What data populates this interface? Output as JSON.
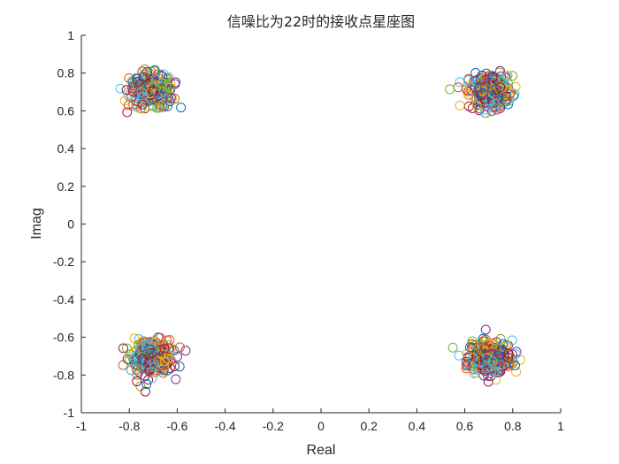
{
  "chart_data": {
    "type": "scatter",
    "title": "信噪比为22时的接收点星座图",
    "xlabel": "Real",
    "ylabel": "Imag",
    "xlim": [
      -1,
      1
    ],
    "ylim": [
      -1,
      1
    ],
    "xticks": [
      -1,
      -0.8,
      -0.6,
      -0.4,
      -0.2,
      0,
      0.2,
      0.4,
      0.6,
      0.8,
      1
    ],
    "xtick_labels": [
      "-1",
      "-0.8",
      "-0.6",
      "-0.4",
      "-0.2",
      "0",
      "0.2",
      "0.4",
      "0.6",
      "0.8",
      "1"
    ],
    "yticks": [
      -1,
      -0.8,
      -0.6,
      -0.4,
      -0.2,
      0,
      0.2,
      0.4,
      0.6,
      0.8,
      1
    ],
    "ytick_labels": [
      "-1",
      "-0.8",
      "-0.6",
      "-0.4",
      "-0.2",
      "0",
      "0.2",
      "0.4",
      "0.6",
      "0.8",
      "1"
    ],
    "grid": false,
    "marker": "open-circle",
    "colors": [
      "#0072BD",
      "#D95319",
      "#EDB120",
      "#7E2F8E",
      "#77AC30",
      "#4DBEEE",
      "#A2142F"
    ],
    "clusters": [
      {
        "center": [
          -0.707,
          0.707
        ],
        "spread": 0.045
      },
      {
        "center": [
          0.707,
          0.707
        ],
        "spread": 0.045
      },
      {
        "center": [
          -0.707,
          -0.707
        ],
        "spread": 0.045
      },
      {
        "center": [
          0.707,
          -0.707
        ],
        "spread": 0.045
      }
    ],
    "points_per_cluster": 280
  }
}
